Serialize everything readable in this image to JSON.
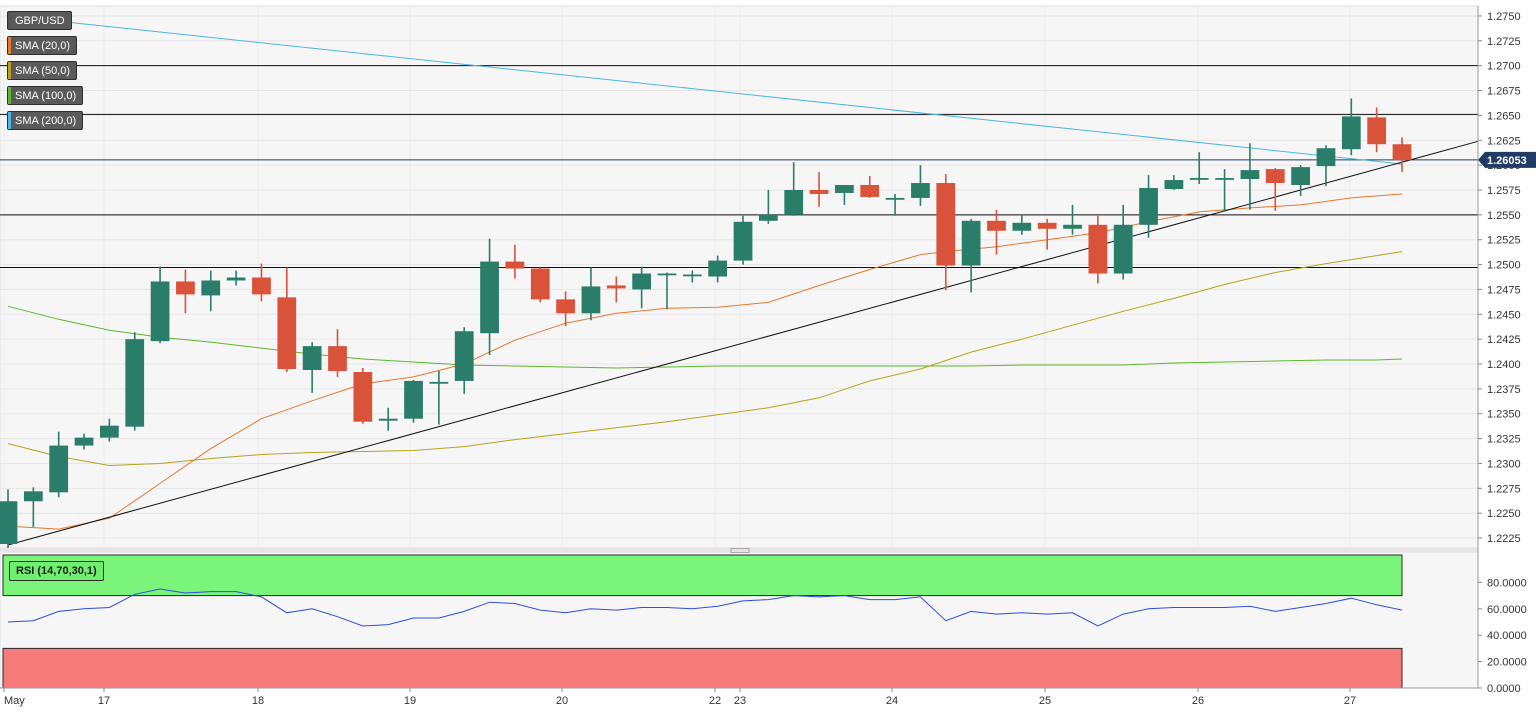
{
  "chart_data": {
    "type": "candlestick",
    "symbol": "GBP/USD",
    "current_price": "1.26053",
    "price_axis": {
      "ticks": [
        "1.2750",
        "1.2725",
        "1.2700",
        "1.2675",
        "1.2650",
        "1.2625",
        "1.2600",
        "1.2575",
        "1.2550",
        "1.2525",
        "1.2500",
        "1.2475",
        "1.2450",
        "1.2425",
        "1.2400",
        "1.2375",
        "1.2350",
        "1.2325",
        "1.2300",
        "1.2275",
        "1.2250",
        "1.2225"
      ],
      "range": [
        1.2215,
        1.276
      ]
    },
    "rsi_axis": {
      "ticks": [
        "80.0000",
        "60.0000",
        "40.0000",
        "20.0000",
        "0.0000"
      ],
      "range": [
        0,
        100
      ],
      "overbought": 70,
      "oversold": 30
    },
    "x_labels": [
      "May",
      "17",
      "18",
      "19",
      "20",
      "22",
      "23",
      "24",
      "25",
      "26",
      "27"
    ],
    "legend": [
      {
        "label": "GBP/USD",
        "color": "#555555"
      },
      {
        "label": "SMA (20,0)",
        "color": "#e8782c"
      },
      {
        "label": "SMA (50,0)",
        "color": "#b8a21e"
      },
      {
        "label": "SMA (100,0)",
        "color": "#5cb82c"
      },
      {
        "label": "SMA (200,0)",
        "color": "#4db5e8"
      }
    ],
    "rsi_label": "RSI (14,70,30,1)",
    "horizontal_levels": [
      1.27,
      1.2651,
      1.255,
      1.2497
    ],
    "candles": [
      {
        "o": 1.2219,
        "h": 1.2274,
        "l": 1.2215,
        "c": 1.2262
      },
      {
        "o": 1.2262,
        "h": 1.2276,
        "l": 1.2236,
        "c": 1.2272
      },
      {
        "o": 1.2271,
        "h": 1.2332,
        "l": 1.2266,
        "c": 1.2318
      },
      {
        "o": 1.2318,
        "h": 1.233,
        "l": 1.2314,
        "c": 1.2326
      },
      {
        "o": 1.2326,
        "h": 1.2345,
        "l": 1.2322,
        "c": 1.2338
      },
      {
        "o": 1.2337,
        "h": 1.2432,
        "l": 1.2333,
        "c": 1.2425
      },
      {
        "o": 1.2423,
        "h": 1.2498,
        "l": 1.2421,
        "c": 1.2483
      },
      {
        "o": 1.2483,
        "h": 1.2495,
        "l": 1.2451,
        "c": 1.247
      },
      {
        "o": 1.2469,
        "h": 1.2494,
        "l": 1.2453,
        "c": 1.2484
      },
      {
        "o": 1.2484,
        "h": 1.2494,
        "l": 1.2479,
        "c": 1.2487
      },
      {
        "o": 1.2487,
        "h": 1.2501,
        "l": 1.2463,
        "c": 1.247
      },
      {
        "o": 1.2467,
        "h": 1.2497,
        "l": 1.2392,
        "c": 1.2395
      },
      {
        "o": 1.2394,
        "h": 1.2422,
        "l": 1.2371,
        "c": 1.2418
      },
      {
        "o": 1.2418,
        "h": 1.2435,
        "l": 1.2387,
        "c": 1.2393
      },
      {
        "o": 1.2392,
        "h": 1.2396,
        "l": 1.234,
        "c": 1.2342
      },
      {
        "o": 1.2343,
        "h": 1.2356,
        "l": 1.2333,
        "c": 1.2345
      },
      {
        "o": 1.2345,
        "h": 1.2384,
        "l": 1.2341,
        "c": 1.2383
      },
      {
        "o": 1.2382,
        "h": 1.2393,
        "l": 1.2339,
        "c": 1.2382
      },
      {
        "o": 1.2383,
        "h": 1.2437,
        "l": 1.237,
        "c": 1.2433
      },
      {
        "o": 1.2431,
        "h": 1.2526,
        "l": 1.2409,
        "c": 1.2503
      },
      {
        "o": 1.2503,
        "h": 1.252,
        "l": 1.2486,
        "c": 1.2496
      },
      {
        "o": 1.2496,
        "h": 1.2497,
        "l": 1.2462,
        "c": 1.2465
      },
      {
        "o": 1.2465,
        "h": 1.2473,
        "l": 1.2438,
        "c": 1.2451
      },
      {
        "o": 1.2451,
        "h": 1.2497,
        "l": 1.2444,
        "c": 1.2478
      },
      {
        "o": 1.2479,
        "h": 1.2488,
        "l": 1.2462,
        "c": 1.2476
      },
      {
        "o": 1.2475,
        "h": 1.2498,
        "l": 1.2456,
        "c": 1.2491
      },
      {
        "o": 1.2491,
        "h": 1.2492,
        "l": 1.2455,
        "c": 1.2491
      },
      {
        "o": 1.249,
        "h": 1.2494,
        "l": 1.2482,
        "c": 1.249
      },
      {
        "o": 1.2488,
        "h": 1.2509,
        "l": 1.2482,
        "c": 1.2504
      },
      {
        "o": 1.2504,
        "h": 1.2549,
        "l": 1.25,
        "c": 1.2543
      },
      {
        "o": 1.2544,
        "h": 1.2575,
        "l": 1.2541,
        "c": 1.255
      },
      {
        "o": 1.255,
        "h": 1.2603,
        "l": 1.2549,
        "c": 1.2575
      },
      {
        "o": 1.2575,
        "h": 1.2593,
        "l": 1.2558,
        "c": 1.2571
      },
      {
        "o": 1.2572,
        "h": 1.258,
        "l": 1.256,
        "c": 1.258
      },
      {
        "o": 1.258,
        "h": 1.2589,
        "l": 1.2567,
        "c": 1.2568
      },
      {
        "o": 1.2567,
        "h": 1.2571,
        "l": 1.2549,
        "c": 1.2567
      },
      {
        "o": 1.2567,
        "h": 1.26,
        "l": 1.2559,
        "c": 1.2582
      },
      {
        "o": 1.2582,
        "h": 1.2591,
        "l": 1.2474,
        "c": 1.2499
      },
      {
        "o": 1.2499,
        "h": 1.2546,
        "l": 1.2472,
        "c": 1.2544
      },
      {
        "o": 1.2544,
        "h": 1.2555,
        "l": 1.251,
        "c": 1.2534
      },
      {
        "o": 1.2534,
        "h": 1.255,
        "l": 1.253,
        "c": 1.2542
      },
      {
        "o": 1.2542,
        "h": 1.2546,
        "l": 1.2515,
        "c": 1.2536
      },
      {
        "o": 1.2536,
        "h": 1.256,
        "l": 1.253,
        "c": 1.254
      },
      {
        "o": 1.254,
        "h": 1.2549,
        "l": 1.2481,
        "c": 1.2491
      },
      {
        "o": 1.2491,
        "h": 1.256,
        "l": 1.2485,
        "c": 1.254
      },
      {
        "o": 1.254,
        "h": 1.259,
        "l": 1.2527,
        "c": 1.2577
      },
      {
        "o": 1.2576,
        "h": 1.259,
        "l": 1.2575,
        "c": 1.2585
      },
      {
        "o": 1.2586,
        "h": 1.2613,
        "l": 1.2581,
        "c": 1.2587
      },
      {
        "o": 1.2587,
        "h": 1.2596,
        "l": 1.2553,
        "c": 1.2587
      },
      {
        "o": 1.2586,
        "h": 1.2622,
        "l": 1.2555,
        "c": 1.2595
      },
      {
        "o": 1.2596,
        "h": 1.2597,
        "l": 1.2554,
        "c": 1.2582
      },
      {
        "o": 1.258,
        "h": 1.26,
        "l": 1.2569,
        "c": 1.2598
      },
      {
        "o": 1.2599,
        "h": 1.262,
        "l": 1.2579,
        "c": 1.2617
      },
      {
        "o": 1.2616,
        "h": 1.2667,
        "l": 1.261,
        "c": 1.2649
      },
      {
        "o": 1.2648,
        "h": 1.2658,
        "l": 1.2613,
        "c": 1.2621
      },
      {
        "o": 1.2621,
        "h": 1.2628,
        "l": 1.2593,
        "c": 1.2605
      }
    ],
    "sma_20": [
      [
        0,
        1.2237
      ],
      [
        2,
        1.2234
      ],
      [
        4,
        1.2245
      ],
      [
        6,
        1.228
      ],
      [
        8,
        1.2315
      ],
      [
        10,
        1.2345
      ],
      [
        12,
        1.2363
      ],
      [
        14,
        1.238
      ],
      [
        16,
        1.2387
      ],
      [
        18,
        1.24
      ],
      [
        20,
        1.2424
      ],
      [
        22,
        1.2441
      ],
      [
        24,
        1.2451
      ],
      [
        26,
        1.2456
      ],
      [
        28,
        1.2457
      ],
      [
        30,
        1.2462
      ],
      [
        32,
        1.2479
      ],
      [
        34,
        1.2495
      ],
      [
        36,
        1.251
      ],
      [
        37,
        1.2513
      ],
      [
        39,
        1.2518
      ],
      [
        41,
        1.2525
      ],
      [
        43,
        1.2532
      ],
      [
        45,
        1.2543
      ],
      [
        47,
        1.2553
      ],
      [
        49,
        1.2557
      ],
      [
        51,
        1.256
      ],
      [
        53,
        1.2567
      ],
      [
        55,
        1.2571
      ]
    ],
    "sma_50": [
      [
        0,
        1.232
      ],
      [
        2,
        1.2307
      ],
      [
        4,
        1.2298
      ],
      [
        6,
        1.23
      ],
      [
        8,
        1.2305
      ],
      [
        10,
        1.2309
      ],
      [
        12,
        1.2311
      ],
      [
        14,
        1.2312
      ],
      [
        16,
        1.2313
      ],
      [
        18,
        1.2317
      ],
      [
        20,
        1.2324
      ],
      [
        22,
        1.233
      ],
      [
        24,
        1.2336
      ],
      [
        26,
        1.2342
      ],
      [
        28,
        1.2349
      ],
      [
        30,
        1.2356
      ],
      [
        32,
        1.2366
      ],
      [
        34,
        1.2383
      ],
      [
        36,
        1.2395
      ],
      [
        38,
        1.2412
      ],
      [
        40,
        1.2425
      ],
      [
        42,
        1.2439
      ],
      [
        44,
        1.2453
      ],
      [
        46,
        1.2466
      ],
      [
        48,
        1.248
      ],
      [
        50,
        1.2492
      ],
      [
        52,
        1.2501
      ],
      [
        54,
        1.2509
      ],
      [
        55,
        1.2513
      ]
    ],
    "sma_100": [
      [
        0,
        1.2458
      ],
      [
        2,
        1.2445
      ],
      [
        4,
        1.2434
      ],
      [
        6,
        1.2427
      ],
      [
        8,
        1.2422
      ],
      [
        10,
        1.2416
      ],
      [
        12,
        1.241
      ],
      [
        14,
        1.2405
      ],
      [
        16,
        1.2402
      ],
      [
        18,
        1.2399
      ],
      [
        20,
        1.2398
      ],
      [
        22,
        1.2397
      ],
      [
        24,
        1.2396
      ],
      [
        26,
        1.2397
      ],
      [
        28,
        1.2398
      ],
      [
        30,
        1.2398
      ],
      [
        32,
        1.2398
      ],
      [
        34,
        1.2398
      ],
      [
        36,
        1.2398
      ],
      [
        38,
        1.2398
      ],
      [
        40,
        1.2399
      ],
      [
        42,
        1.2399
      ],
      [
        44,
        1.2399
      ],
      [
        46,
        1.2401
      ],
      [
        48,
        1.2402
      ],
      [
        50,
        1.2403
      ],
      [
        52,
        1.2404
      ],
      [
        54,
        1.2404
      ],
      [
        55,
        1.2405
      ]
    ],
    "sma_200": [
      [
        0,
        1.275
      ],
      [
        55,
        1.2601
      ]
    ],
    "trendline": [
      [
        0,
        1.2218
      ],
      [
        55,
        1.2603
      ]
    ],
    "rsi": [
      [
        0,
        50
      ],
      [
        1,
        51
      ],
      [
        2,
        58
      ],
      [
        3,
        60
      ],
      [
        4,
        61
      ],
      [
        5,
        71
      ],
      [
        6,
        75
      ],
      [
        7,
        72
      ],
      [
        8,
        73
      ],
      [
        9,
        73
      ],
      [
        10,
        69
      ],
      [
        11,
        57
      ],
      [
        12,
        60
      ],
      [
        13,
        54
      ],
      [
        14,
        47
      ],
      [
        15,
        48
      ],
      [
        16,
        53
      ],
      [
        17,
        53
      ],
      [
        18,
        58
      ],
      [
        19,
        65
      ],
      [
        20,
        64
      ],
      [
        21,
        59
      ],
      [
        22,
        57
      ],
      [
        23,
        60
      ],
      [
        24,
        59
      ],
      [
        25,
        61
      ],
      [
        26,
        61
      ],
      [
        27,
        60
      ],
      [
        28,
        62
      ],
      [
        29,
        66
      ],
      [
        30,
        67
      ],
      [
        31,
        70
      ],
      [
        32,
        69
      ],
      [
        33,
        70
      ],
      [
        34,
        67
      ],
      [
        35,
        67
      ],
      [
        36,
        69
      ],
      [
        37,
        51
      ],
      [
        38,
        58
      ],
      [
        39,
        56
      ],
      [
        40,
        57
      ],
      [
        41,
        56
      ],
      [
        42,
        57
      ],
      [
        43,
        47
      ],
      [
        44,
        56
      ],
      [
        45,
        60
      ],
      [
        46,
        61
      ],
      [
        47,
        61
      ],
      [
        48,
        61
      ],
      [
        49,
        62
      ],
      [
        50,
        58
      ],
      [
        51,
        61
      ],
      [
        52,
        64
      ],
      [
        53,
        68
      ],
      [
        54,
        63
      ],
      [
        55,
        59
      ]
    ]
  }
}
